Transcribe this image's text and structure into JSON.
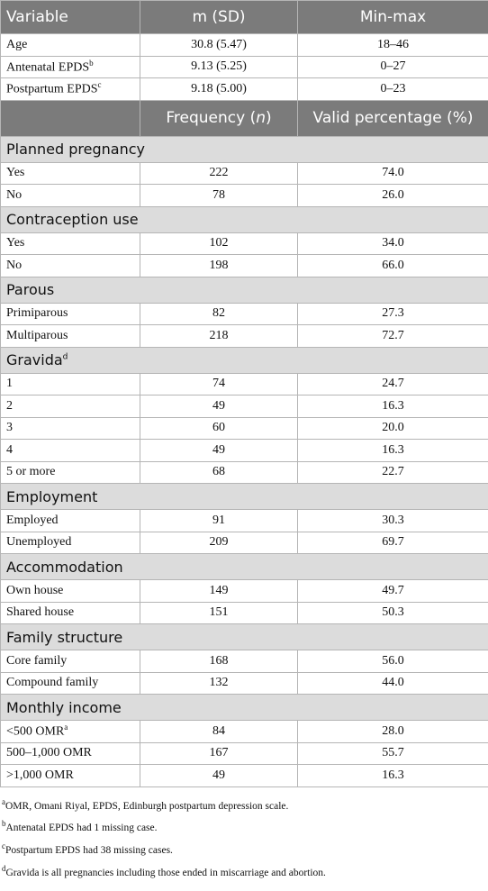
{
  "header": {
    "columns": [
      "Variable",
      "m (SD)",
      "Min-max"
    ]
  },
  "continuous_rows": [
    {
      "label": "Age",
      "m_sd": "30.8 (5.47)",
      "range": "18–46"
    },
    {
      "label": "Antenatal EPDS",
      "note": "b",
      "m_sd": "9.13 (5.25)",
      "range": "0–27"
    },
    {
      "label": "Postpartum EPDS",
      "note": "c",
      "m_sd": "9.18 (5.00)",
      "range": "0–23"
    }
  ],
  "frequency_header": {
    "freq_pre": "Frequency (",
    "freq_n": "n",
    "freq_post": ")",
    "percent": "Valid percentage (%)"
  },
  "sections": [
    {
      "title": "Planned pregnancy",
      "rows": [
        {
          "label": "Yes",
          "n": "222",
          "pct": "74.0"
        },
        {
          "label": "No",
          "n": "78",
          "pct": "26.0"
        }
      ]
    },
    {
      "title": "Contraception use",
      "rows": [
        {
          "label": "Yes",
          "n": "102",
          "pct": "34.0"
        },
        {
          "label": "No",
          "n": "198",
          "pct": "66.0"
        }
      ]
    },
    {
      "title": "Parous",
      "rows": [
        {
          "label": "Primiparous",
          "n": "82",
          "pct": "27.3"
        },
        {
          "label": "Multiparous",
          "n": "218",
          "pct": "72.7"
        }
      ]
    },
    {
      "title": "Gravida",
      "note": "d",
      "rows": [
        {
          "label": "1",
          "n": "74",
          "pct": "24.7"
        },
        {
          "label": "2",
          "n": "49",
          "pct": "16.3"
        },
        {
          "label": "3",
          "n": "60",
          "pct": "20.0"
        },
        {
          "label": "4",
          "n": "49",
          "pct": "16.3"
        },
        {
          "label": "5 or more",
          "n": "68",
          "pct": "22.7"
        }
      ]
    },
    {
      "title": "Employment",
      "rows": [
        {
          "label": "Employed",
          "n": "91",
          "pct": "30.3"
        },
        {
          "label": "Unemployed",
          "n": "209",
          "pct": "69.7"
        }
      ]
    },
    {
      "title": "Accommodation",
      "rows": [
        {
          "label": "Own house",
          "n": "149",
          "pct": "49.7"
        },
        {
          "label": "Shared house",
          "n": "151",
          "pct": "50.3"
        }
      ]
    },
    {
      "title": "Family structure",
      "rows": [
        {
          "label": "Core family",
          "n": "168",
          "pct": "56.0"
        },
        {
          "label": "Compound family",
          "n": "132",
          "pct": "44.0"
        }
      ]
    },
    {
      "title": "Monthly income",
      "rows": [
        {
          "label": "<500 OMR",
          "note": "a",
          "n": "84",
          "pct": "28.0"
        },
        {
          "label": "500–1,000 OMR",
          "n": "167",
          "pct": "55.7"
        },
        {
          "label": ">1,000 OMR",
          "n": "49",
          "pct": "16.3"
        }
      ]
    }
  ],
  "footnotes": [
    {
      "mark": "a",
      "text": "OMR, Omani Riyal, EPDS, Edinburgh postpartum depression scale."
    },
    {
      "mark": "b",
      "text": "Antenatal EPDS had 1 missing case."
    },
    {
      "mark": "c",
      "text": "Postpartum EPDS had 38 missing cases."
    },
    {
      "mark": "d",
      "text": "Gravida is all pregnancies including those ended in miscarriage and abortion."
    }
  ]
}
